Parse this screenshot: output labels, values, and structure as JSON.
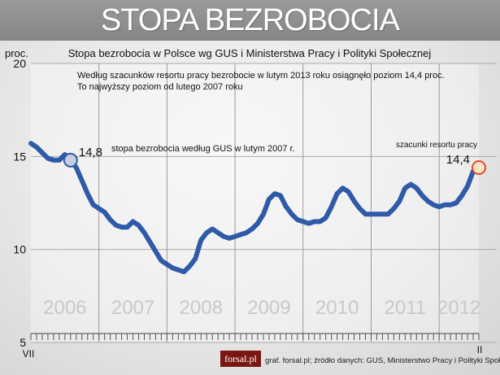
{
  "banner_title": "STOPA BEZROBOCIA",
  "chart_data": {
    "type": "line",
    "title": "Stopa bezrobocia w Polsce wg GUS i Ministerstwa Pracy i Polityki Społecznej",
    "ylabel": "proc.",
    "ylim": [
      5,
      20
    ],
    "yticks": [
      5,
      10,
      15,
      20
    ],
    "x_start_label": "VII",
    "x_end_label": "II",
    "year_labels": [
      "2006",
      "2007",
      "2008",
      "2009",
      "2010",
      "2011",
      "2012"
    ],
    "series": [
      {
        "color": "#2f5aa8",
        "x": [
          "2006-07",
          "2006-08",
          "2006-09",
          "2006-10",
          "2006-11",
          "2006-12",
          "2007-01",
          "2007-02",
          "2007-03",
          "2007-04",
          "2007-05",
          "2007-06",
          "2007-07",
          "2007-08",
          "2007-09",
          "2007-10",
          "2007-11",
          "2007-12",
          "2008-01",
          "2008-02",
          "2008-03",
          "2008-04",
          "2008-05",
          "2008-06",
          "2008-07",
          "2008-08",
          "2008-09",
          "2008-10",
          "2008-11",
          "2008-12",
          "2009-01",
          "2009-02",
          "2009-03",
          "2009-04",
          "2009-05",
          "2009-06",
          "2009-07",
          "2009-08",
          "2009-09",
          "2009-10",
          "2009-11",
          "2009-12",
          "2010-01",
          "2010-02",
          "2010-03",
          "2010-04",
          "2010-05",
          "2010-06",
          "2010-07",
          "2010-08",
          "2010-09",
          "2010-10",
          "2010-11",
          "2010-12",
          "2011-01",
          "2011-02",
          "2011-03",
          "2011-04",
          "2011-05",
          "2011-06",
          "2011-07",
          "2011-08",
          "2011-09",
          "2011-10",
          "2011-11",
          "2011-12",
          "2012-01",
          "2012-02",
          "2012-03",
          "2012-04",
          "2012-05",
          "2012-06",
          "2012-07",
          "2012-08",
          "2012-09",
          "2012-10",
          "2012-11",
          "2012-12",
          "2013-01",
          "2013-02"
        ],
        "values": [
          15.7,
          15.5,
          15.2,
          14.9,
          14.8,
          14.8,
          15.1,
          14.8,
          14.4,
          13.7,
          13.0,
          12.4,
          12.2,
          12.0,
          11.6,
          11.3,
          11.2,
          11.2,
          11.5,
          11.3,
          10.9,
          10.4,
          9.9,
          9.4,
          9.2,
          9.0,
          8.9,
          8.8,
          9.1,
          9.5,
          10.5,
          10.9,
          11.1,
          10.9,
          10.7,
          10.6,
          10.7,
          10.8,
          10.9,
          11.1,
          11.4,
          11.9,
          12.7,
          13.0,
          12.9,
          12.3,
          11.9,
          11.6,
          11.5,
          11.4,
          11.5,
          11.5,
          11.7,
          12.3,
          13.0,
          13.3,
          13.1,
          12.6,
          12.2,
          11.9,
          11.9,
          11.9,
          11.9,
          11.9,
          12.2,
          12.6,
          13.3,
          13.5,
          13.3,
          12.9,
          12.6,
          12.4,
          12.3,
          12.4,
          12.4,
          12.5,
          12.9,
          13.4,
          14.2,
          14.4
        ]
      }
    ],
    "highlights": [
      {
        "x": "2007-02",
        "value": 14.8,
        "label": "14,8",
        "fill": "#c6cde0",
        "stroke": "#2f5aa8"
      },
      {
        "x": "2013-02",
        "value": 14.4,
        "label": "14,4",
        "fill": "#fbe3c8",
        "stroke": "#e2492b"
      }
    ]
  },
  "annotations": {
    "note_line1": "Według szacunków resortu pracy bezrobocie w lutym 2013 roku osiągnęło poziom 14,4 proc.",
    "note_line2": "To najwyższy poziom od lutego 2007 roku",
    "feb2007": "stopa bezrobocia według GUS w lutym 2007 r.",
    "ministry_estimate": "szacunki resortu pracy"
  },
  "footer": {
    "logo": "forsal.pl",
    "credit": "graf. forsal.pl;      źródło danych: GUS, Ministerstwo Pracy i Polityki Społecznej"
  }
}
